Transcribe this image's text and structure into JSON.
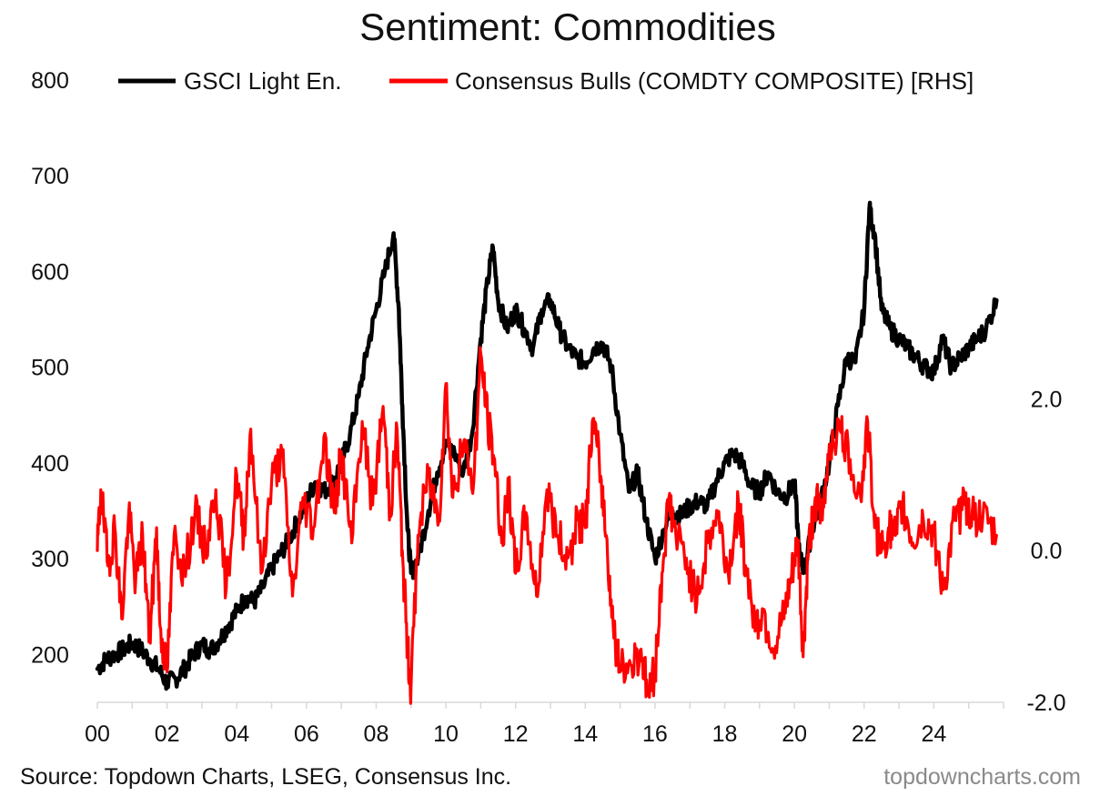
{
  "chart_data": {
    "type": "line",
    "title": "Sentiment: Commodities",
    "source": "Source: Topdown Charts, LSEG, Consensus Inc.",
    "brand": "topdowncharts.com",
    "x_ticks": [
      "00",
      "02",
      "04",
      "06",
      "08",
      "10",
      "12",
      "14",
      "16",
      "18",
      "20",
      "22",
      "24"
    ],
    "x_range": [
      2000,
      2026
    ],
    "y_left": {
      "ticks": [
        "200",
        "300",
        "400",
        "500",
        "600",
        "700",
        "800"
      ],
      "range": [
        150,
        800
      ]
    },
    "y_right": {
      "ticks": [
        "-2.0",
        "0.0",
        "2.0"
      ],
      "range": [
        -2.0,
        6.2
      ]
    },
    "series": [
      {
        "name": "GSCI Light En.",
        "axis": "left",
        "color": "#000000",
        "x": [
          2000.0,
          2000.25,
          2000.5,
          2000.75,
          2001.0,
          2001.25,
          2001.5,
          2001.75,
          2002.0,
          2002.25,
          2002.5,
          2002.75,
          2003.0,
          2003.25,
          2003.5,
          2003.75,
          2004.0,
          2004.25,
          2004.5,
          2004.75,
          2005.0,
          2005.25,
          2005.5,
          2005.75,
          2006.0,
          2006.25,
          2006.5,
          2006.75,
          2007.0,
          2007.25,
          2007.5,
          2007.75,
          2008.0,
          2008.25,
          2008.5,
          2008.65,
          2008.75,
          2008.9,
          2009.0,
          2009.2,
          2009.5,
          2009.75,
          2010.0,
          2010.25,
          2010.5,
          2010.75,
          2011.0,
          2011.2,
          2011.35,
          2011.5,
          2011.75,
          2012.0,
          2012.25,
          2012.5,
          2012.75,
          2013.0,
          2013.25,
          2013.5,
          2013.75,
          2014.0,
          2014.25,
          2014.5,
          2014.75,
          2015.0,
          2015.25,
          2015.5,
          2015.75,
          2016.0,
          2016.25,
          2016.5,
          2016.75,
          2017.0,
          2017.25,
          2017.5,
          2017.75,
          2018.0,
          2018.25,
          2018.5,
          2018.75,
          2019.0,
          2019.25,
          2019.5,
          2019.75,
          2020.0,
          2020.15,
          2020.3,
          2020.5,
          2020.75,
          2021.0,
          2021.25,
          2021.5,
          2021.75,
          2022.0,
          2022.15,
          2022.3,
          2022.5,
          2022.75,
          2023.0,
          2023.25,
          2023.5,
          2023.75,
          2024.0,
          2024.25,
          2024.5,
          2024.75,
          2025.0,
          2025.25,
          2025.5,
          2025.8
        ],
        "values": [
          185,
          195,
          200,
          205,
          212,
          205,
          195,
          185,
          170,
          175,
          185,
          200,
          210,
          205,
          215,
          230,
          245,
          260,
          255,
          270,
          290,
          305,
          320,
          340,
          360,
          380,
          370,
          380,
          400,
          430,
          470,
          520,
          560,
          600,
          640,
          560,
          460,
          330,
          285,
          300,
          350,
          390,
          420,
          410,
          390,
          430,
          530,
          590,
          625,
          570,
          540,
          560,
          540,
          520,
          560,
          570,
          540,
          520,
          510,
          505,
          520,
          525,
          500,
          430,
          370,
          390,
          340,
          300,
          330,
          350,
          345,
          355,
          360,
          355,
          380,
          400,
          410,
          400,
          375,
          370,
          390,
          370,
          365,
          380,
          300,
          290,
          330,
          360,
          400,
          460,
          510,
          505,
          560,
          665,
          640,
          560,
          540,
          530,
          520,
          510,
          500,
          495,
          530,
          500,
          510,
          520,
          530,
          540,
          570
        ]
      },
      {
        "name": "Consensus Bulls (COMDTY COMPOSITE) [RHS]",
        "axis": "right",
        "color": "#ff0000",
        "x": [
          2000.0,
          2000.1,
          2000.3,
          2000.5,
          2000.7,
          2000.9,
          2001.1,
          2001.3,
          2001.5,
          2001.7,
          2001.8,
          2002.0,
          2002.2,
          2002.5,
          2002.8,
          2003.1,
          2003.4,
          2003.7,
          2004.0,
          2004.2,
          2004.4,
          2004.7,
          2005.0,
          2005.3,
          2005.6,
          2005.9,
          2006.2,
          2006.5,
          2006.8,
          2007.0,
          2007.3,
          2007.6,
          2007.9,
          2008.2,
          2008.4,
          2008.6,
          2008.75,
          2008.9,
          2009.0,
          2009.2,
          2009.5,
          2009.8,
          2010.0,
          2010.2,
          2010.5,
          2010.8,
          2011.0,
          2011.2,
          2011.4,
          2011.6,
          2011.8,
          2012.0,
          2012.3,
          2012.6,
          2012.9,
          2013.2,
          2013.5,
          2013.8,
          2014.0,
          2014.2,
          2014.4,
          2014.6,
          2014.8,
          2015.0,
          2015.3,
          2015.6,
          2015.8,
          2016.0,
          2016.2,
          2016.4,
          2016.6,
          2016.9,
          2017.2,
          2017.5,
          2017.8,
          2018.1,
          2018.4,
          2018.6,
          2018.9,
          2019.1,
          2019.4,
          2019.7,
          2019.9,
          2020.1,
          2020.25,
          2020.4,
          2020.6,
          2020.8,
          2021.0,
          2021.3,
          2021.6,
          2021.9,
          2022.1,
          2022.3,
          2022.5,
          2022.7,
          2022.9,
          2023.1,
          2023.4,
          2023.7,
          2024.0,
          2024.3,
          2024.6,
          2024.9,
          2025.1,
          2025.4,
          2025.8
        ],
        "values": [
          0.0,
          0.8,
          -0.2,
          0.3,
          -0.9,
          0.5,
          -0.4,
          0.2,
          -1.2,
          0.3,
          -1.0,
          -1.6,
          0.2,
          -0.3,
          0.5,
          0.0,
          0.8,
          -0.5,
          1.0,
          0.2,
          1.6,
          -0.3,
          0.9,
          1.3,
          -0.6,
          0.7,
          0.3,
          1.5,
          0.5,
          1.3,
          0.1,
          1.7,
          0.6,
          1.9,
          0.5,
          1.6,
          0.0,
          -1.3,
          -1.8,
          0.2,
          1.0,
          0.4,
          2.2,
          0.7,
          1.4,
          0.9,
          2.6,
          1.7,
          1.2,
          0.1,
          0.8,
          -0.3,
          0.5,
          -0.6,
          0.8,
          0.2,
          -0.1,
          0.4,
          0.3,
          1.7,
          1.2,
          0.2,
          -1.0,
          -1.6,
          -1.5,
          -1.3,
          -1.9,
          -1.6,
          -0.3,
          0.7,
          0.2,
          -0.1,
          -0.7,
          0.1,
          0.5,
          -0.3,
          0.6,
          -0.2,
          -1.0,
          -0.8,
          -1.3,
          -0.9,
          -0.4,
          0.1,
          -1.4,
          0.0,
          0.7,
          0.4,
          1.4,
          1.6,
          1.2,
          0.7,
          1.7,
          0.3,
          0.0,
          0.3,
          0.2,
          0.6,
          0.1,
          0.4,
          0.2,
          -0.5,
          0.4,
          0.6,
          0.5,
          0.4,
          0.2
        ]
      }
    ]
  }
}
